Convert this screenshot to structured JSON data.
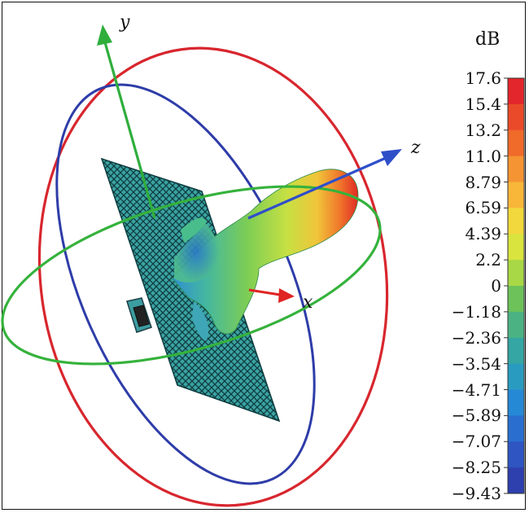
{
  "axes": {
    "x": "x",
    "y": "y",
    "z": "z"
  },
  "colorbar": {
    "unit": "dB",
    "ticks": [
      "17.6",
      "15.4",
      "13.2",
      "11.0",
      "8.79",
      "6.59",
      "4.39",
      "2.2",
      "0",
      "−1.18",
      "−2.36",
      "−3.54",
      "−4.71",
      "−5.89",
      "−7.07",
      "−8.25",
      "−9.43"
    ],
    "colors": [
      "#e3262b",
      "#ea4a2a",
      "#f06a2a",
      "#f59433",
      "#f8b739",
      "#f2d83c",
      "#d9e43f",
      "#a9d846",
      "#6dc25a",
      "#4bb383",
      "#35a6a3",
      "#2a9bc0",
      "#2689d6",
      "#2a6fd0",
      "#2e55c2",
      "#2e3fae"
    ]
  },
  "colors": {
    "x_axis": "#e02323",
    "y_axis": "#2fae3c",
    "z_axis": "#2f4fc9",
    "ring_red": "#d8262e",
    "ring_blue": "#2e3ca8",
    "ring_green": "#35b23c",
    "panel": "#3fa9a8"
  }
}
